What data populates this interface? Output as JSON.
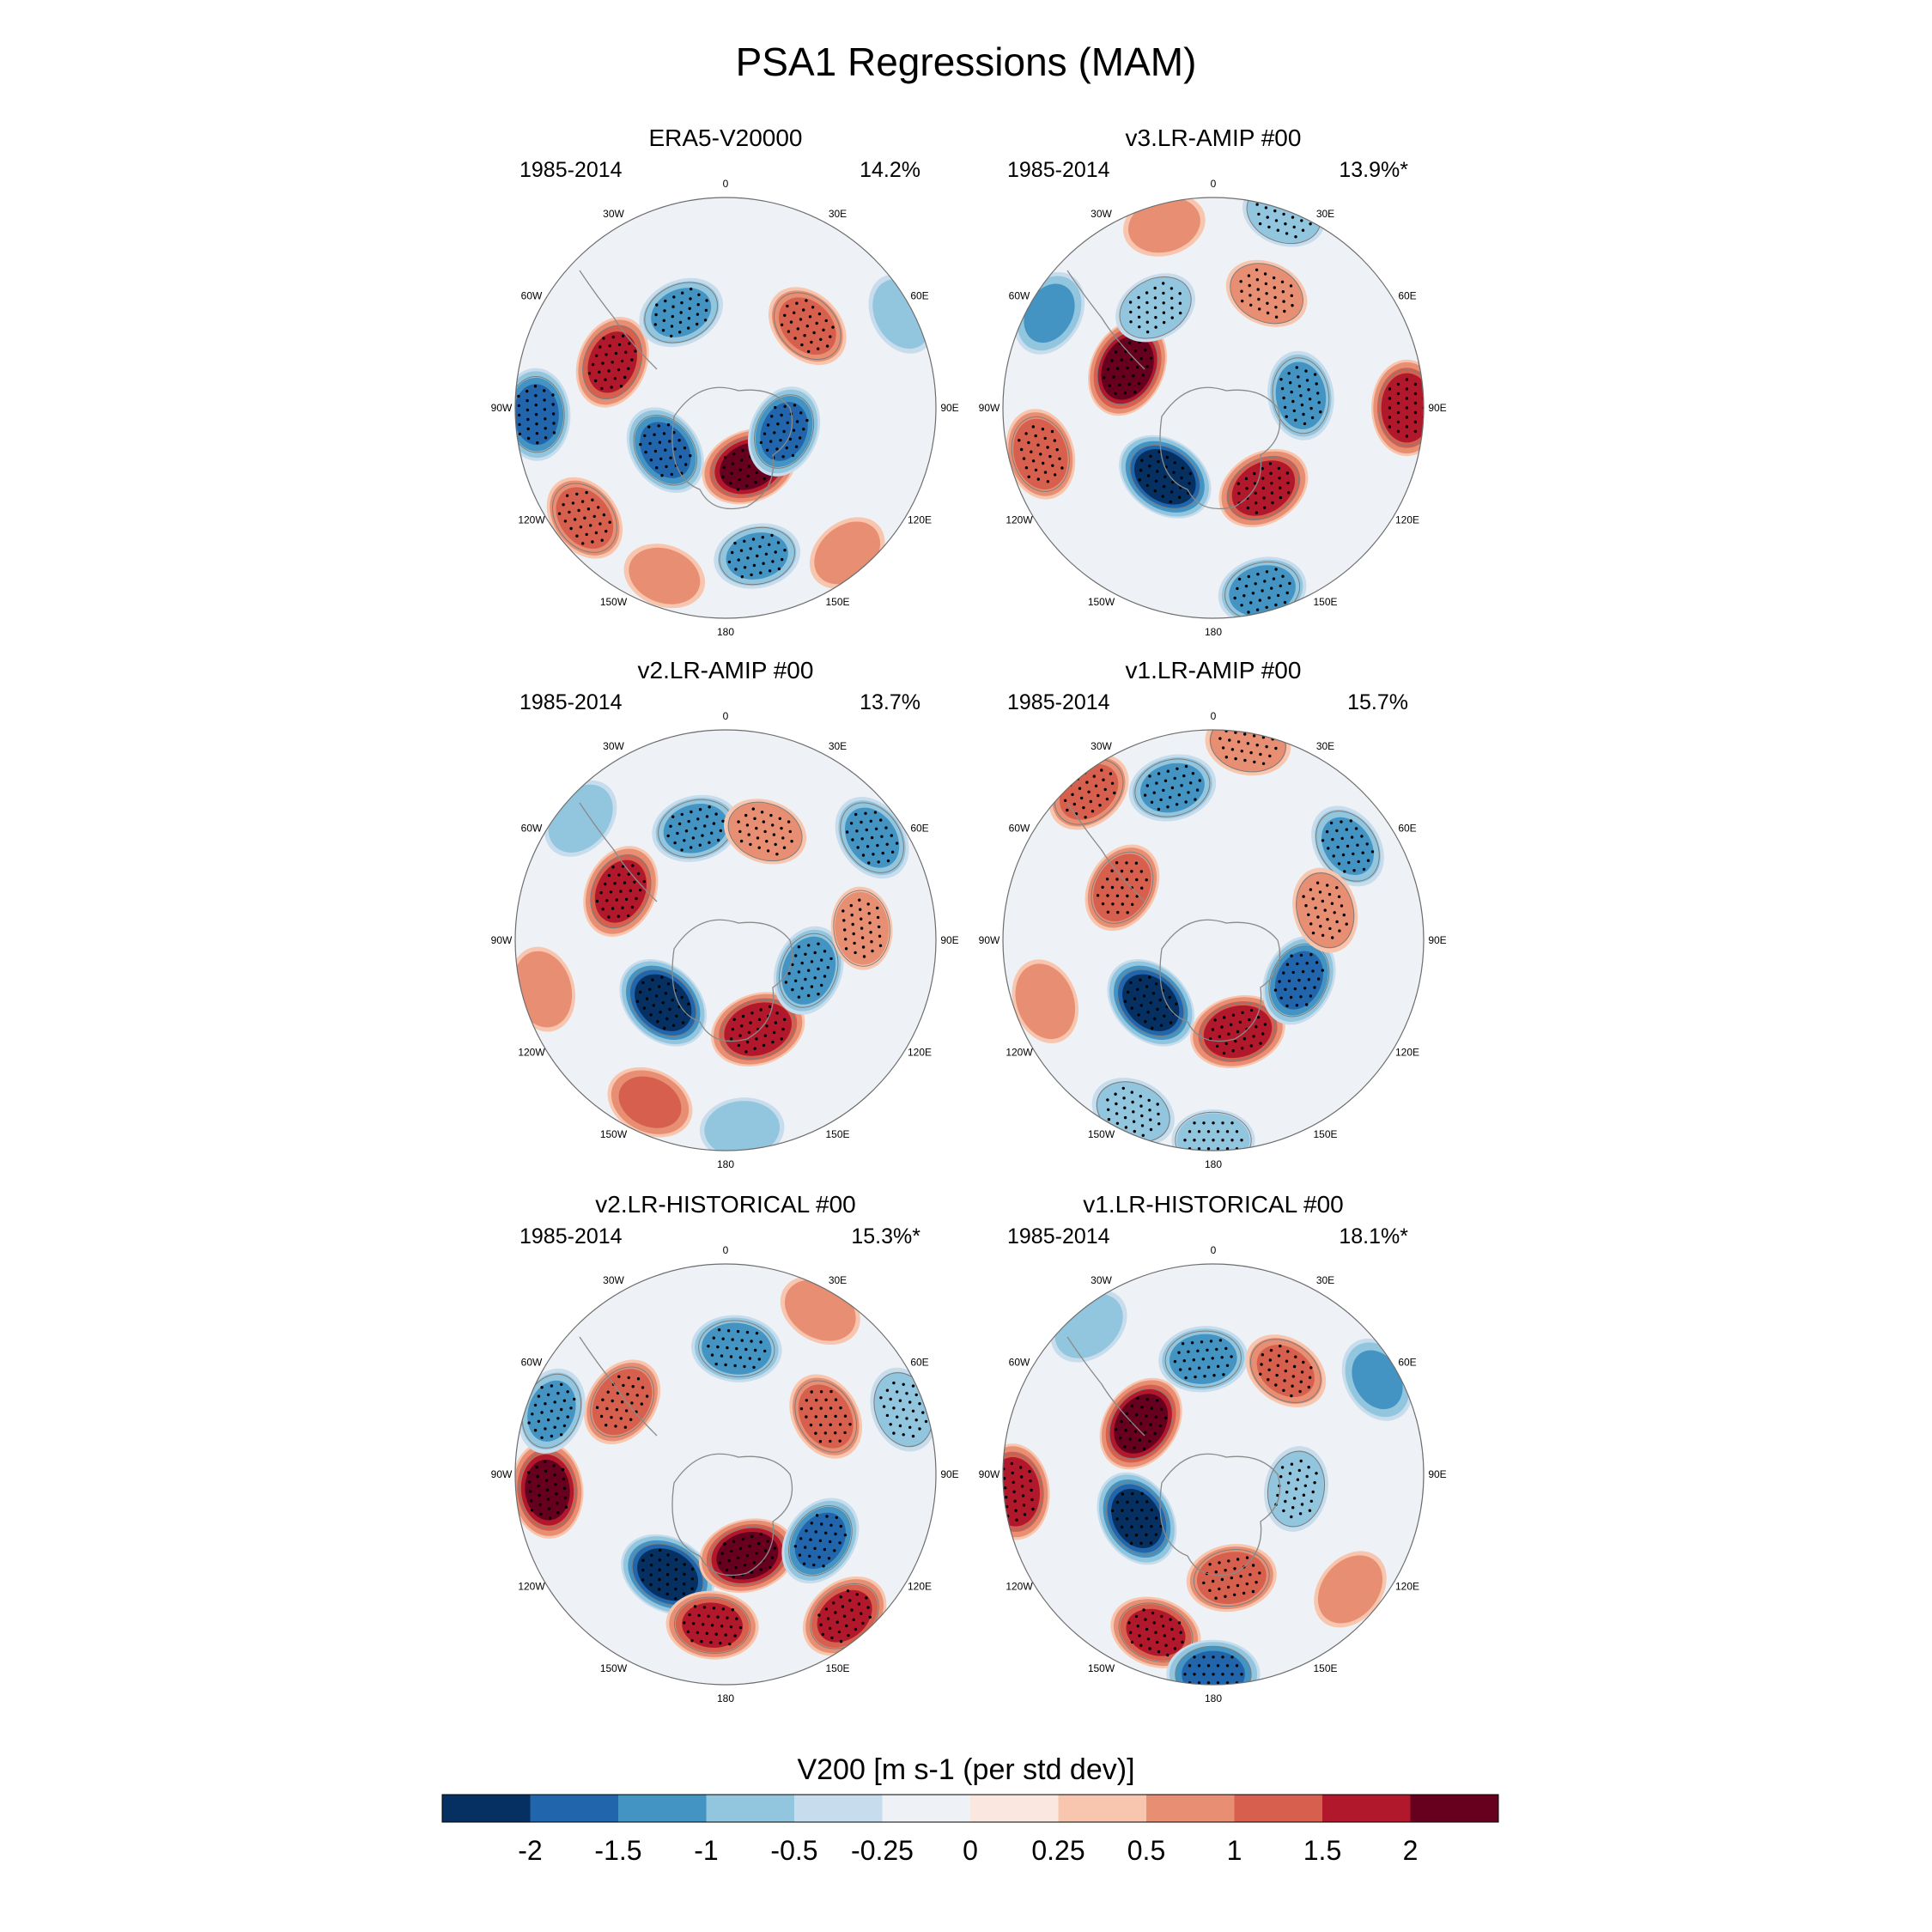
{
  "chart_data": {
    "type": "heatmap",
    "projection": "south-polar-stereographic",
    "title": "PSA1 Regressions (MAM)",
    "variable_label": "V200 [m s-1 (per std dev)]",
    "longitude_labels": [
      "0",
      "30E",
      "60E",
      "90E",
      "120E",
      "150E",
      "180",
      "150W",
      "120W",
      "90W",
      "60W",
      "30W"
    ],
    "panels": [
      {
        "title": "ERA5-V20000",
        "period": "1985-2014",
        "variance": "14.2%",
        "anomalies": [
          {
            "lon": 268,
            "r": 0.9,
            "value": -1.6,
            "stipple": true
          },
          {
            "lon": 292,
            "r": 0.58,
            "value": 1.7,
            "stipple": true
          },
          {
            "lon": 335,
            "r": 0.5,
            "value": -1.1,
            "stipple": true
          },
          {
            "lon": 45,
            "r": 0.55,
            "value": 1.2,
            "stipple": true
          },
          {
            "lon": 62,
            "r": 0.95,
            "value": -0.8,
            "stipple": false
          },
          {
            "lon": 235,
            "r": 0.35,
            "value": -1.6,
            "stipple": true
          },
          {
            "lon": 158,
            "r": 0.3,
            "value": 2.1,
            "stipple": true
          },
          {
            "lon": 112,
            "r": 0.3,
            "value": -1.6,
            "stipple": true
          },
          {
            "lon": 232,
            "r": 0.85,
            "value": 1.3,
            "stipple": true
          },
          {
            "lon": 168,
            "r": 0.72,
            "value": -1.1,
            "stipple": true
          },
          {
            "lon": 200,
            "r": 0.85,
            "value": 0.8,
            "stipple": false
          },
          {
            "lon": 140,
            "r": 0.9,
            "value": 0.8,
            "stipple": false
          }
        ]
      },
      {
        "title": "v3.LR-AMIP  #00",
        "period": "1985-2014",
        "variance": "13.9%*",
        "anomalies": [
          {
            "lon": 295,
            "r": 0.45,
            "value": 2.4,
            "stipple": true
          },
          {
            "lon": 215,
            "r": 0.4,
            "value": -2.4,
            "stipple": true
          },
          {
            "lon": 148,
            "r": 0.45,
            "value": 1.9,
            "stipple": true
          },
          {
            "lon": 82,
            "r": 0.42,
            "value": -1.3,
            "stipple": true
          },
          {
            "lon": 25,
            "r": 0.6,
            "value": 0.9,
            "stipple": true
          },
          {
            "lon": 330,
            "r": 0.55,
            "value": -0.9,
            "stipple": true
          },
          {
            "lon": 255,
            "r": 0.85,
            "value": 1.5,
            "stipple": true
          },
          {
            "lon": 300,
            "r": 0.9,
            "value": -1.1,
            "stipple": false
          },
          {
            "lon": 90,
            "r": 0.92,
            "value": 2.0,
            "stipple": true
          },
          {
            "lon": 165,
            "r": 0.9,
            "value": -1.3,
            "stipple": true
          },
          {
            "lon": 20,
            "r": 0.98,
            "value": -0.9,
            "stipple": true
          },
          {
            "lon": 345,
            "r": 0.9,
            "value": 0.8,
            "stipple": false
          }
        ]
      },
      {
        "title": "v2.LR-AMIP  #00",
        "period": "1985-2014",
        "variance": "13.7%",
        "anomalies": [
          {
            "lon": 295,
            "r": 0.55,
            "value": 1.8,
            "stipple": true
          },
          {
            "lon": 225,
            "r": 0.42,
            "value": -2.3,
            "stipple": true
          },
          {
            "lon": 160,
            "r": 0.45,
            "value": 2.0,
            "stipple": true
          },
          {
            "lon": 110,
            "r": 0.42,
            "value": -1.4,
            "stipple": true
          },
          {
            "lon": 345,
            "r": 0.55,
            "value": -1.2,
            "stipple": true
          },
          {
            "lon": 20,
            "r": 0.55,
            "value": 0.9,
            "stipple": true
          },
          {
            "lon": 55,
            "r": 0.85,
            "value": -1.2,
            "stipple": true
          },
          {
            "lon": 85,
            "r": 0.65,
            "value": 0.8,
            "stipple": true
          },
          {
            "lon": 255,
            "r": 0.9,
            "value": 1.0,
            "stipple": false
          },
          {
            "lon": 205,
            "r": 0.85,
            "value": 1.2,
            "stipple": false
          },
          {
            "lon": 175,
            "r": 0.9,
            "value": -0.9,
            "stipple": false
          },
          {
            "lon": 310,
            "r": 0.9,
            "value": -0.9,
            "stipple": false
          }
        ]
      },
      {
        "title": "v1.LR-AMIP  #00",
        "period": "1985-2014",
        "variance": "15.7%",
        "anomalies": [
          {
            "lon": 300,
            "r": 0.5,
            "value": 1.5,
            "stipple": true
          },
          {
            "lon": 225,
            "r": 0.42,
            "value": -2.3,
            "stipple": true
          },
          {
            "lon": 165,
            "r": 0.45,
            "value": 2.0,
            "stipple": true
          },
          {
            "lon": 115,
            "r": 0.45,
            "value": -1.6,
            "stipple": true
          },
          {
            "lon": 345,
            "r": 0.75,
            "value": -1.2,
            "stipple": true
          },
          {
            "lon": 10,
            "r": 0.95,
            "value": 1.0,
            "stipple": true
          },
          {
            "lon": 55,
            "r": 0.78,
            "value": -1.1,
            "stipple": true
          },
          {
            "lon": 75,
            "r": 0.55,
            "value": 1.0,
            "stipple": true
          },
          {
            "lon": 320,
            "r": 0.92,
            "value": 1.2,
            "stipple": true
          },
          {
            "lon": 250,
            "r": 0.85,
            "value": 1.0,
            "stipple": false
          },
          {
            "lon": 205,
            "r": 0.9,
            "value": -1.0,
            "stipple": true
          },
          {
            "lon": 180,
            "r": 0.95,
            "value": -0.8,
            "stipple": true
          }
        ]
      },
      {
        "title": "v2.LR-HISTORICAL  #00",
        "period": "1985-2014",
        "variance": "15.3%*",
        "anomalies": [
          {
            "lon": 305,
            "r": 0.6,
            "value": 1.5,
            "stipple": true
          },
          {
            "lon": 210,
            "r": 0.55,
            "value": -2.3,
            "stipple": true
          },
          {
            "lon": 165,
            "r": 0.4,
            "value": 2.2,
            "stipple": true
          },
          {
            "lon": 125,
            "r": 0.55,
            "value": -1.6,
            "stipple": true
          },
          {
            "lon": 5,
            "r": 0.6,
            "value": -1.4,
            "stipple": true
          },
          {
            "lon": 60,
            "r": 0.55,
            "value": 1.3,
            "stipple": true
          },
          {
            "lon": 265,
            "r": 0.85,
            "value": 2.1,
            "stipple": true
          },
          {
            "lon": 290,
            "r": 0.88,
            "value": -1.1,
            "stipple": true
          },
          {
            "lon": 185,
            "r": 0.72,
            "value": 1.6,
            "stipple": true
          },
          {
            "lon": 140,
            "r": 0.88,
            "value": 1.6,
            "stipple": true
          },
          {
            "lon": 70,
            "r": 0.9,
            "value": -1.0,
            "stipple": true
          },
          {
            "lon": 30,
            "r": 0.9,
            "value": 0.9,
            "stipple": false
          }
        ]
      },
      {
        "title": "v1.LR-HISTORICAL  #00",
        "period": "1985-2014",
        "variance": "18.1%*",
        "anomalies": [
          {
            "lon": 305,
            "r": 0.42,
            "value": 2.3,
            "stipple": true
          },
          {
            "lon": 240,
            "r": 0.42,
            "value": -2.2,
            "stipple": true
          },
          {
            "lon": 170,
            "r": 0.5,
            "value": 1.4,
            "stipple": true
          },
          {
            "lon": 100,
            "r": 0.4,
            "value": -1.0,
            "stipple": true
          },
          {
            "lon": 355,
            "r": 0.55,
            "value": -1.3,
            "stipple": true
          },
          {
            "lon": 35,
            "r": 0.6,
            "value": 1.1,
            "stipple": true
          },
          {
            "lon": 60,
            "r": 0.9,
            "value": -1.1,
            "stipple": false
          },
          {
            "lon": 265,
            "r": 0.95,
            "value": 2.0,
            "stipple": true
          },
          {
            "lon": 200,
            "r": 0.8,
            "value": 1.6,
            "stipple": true
          },
          {
            "lon": 180,
            "r": 0.95,
            "value": -1.7,
            "stipple": true
          },
          {
            "lon": 320,
            "r": 0.92,
            "value": -0.9,
            "stipple": false
          },
          {
            "lon": 130,
            "r": 0.85,
            "value": 0.9,
            "stipple": false
          }
        ]
      }
    ],
    "colorbar": {
      "levels": [
        "-2",
        "-1.5",
        "-1",
        "-0.5",
        "-0.25",
        "0",
        "0.25",
        "0.5",
        "1",
        "1.5",
        "2"
      ],
      "colors": [
        "#053061",
        "#2166ac",
        "#4393c3",
        "#92c5de",
        "#c7dcec",
        "#eef2f6",
        "#fae8e0",
        "#f8c6ae",
        "#e88e73",
        "#d6604d",
        "#b2182b",
        "#67001f"
      ]
    }
  }
}
